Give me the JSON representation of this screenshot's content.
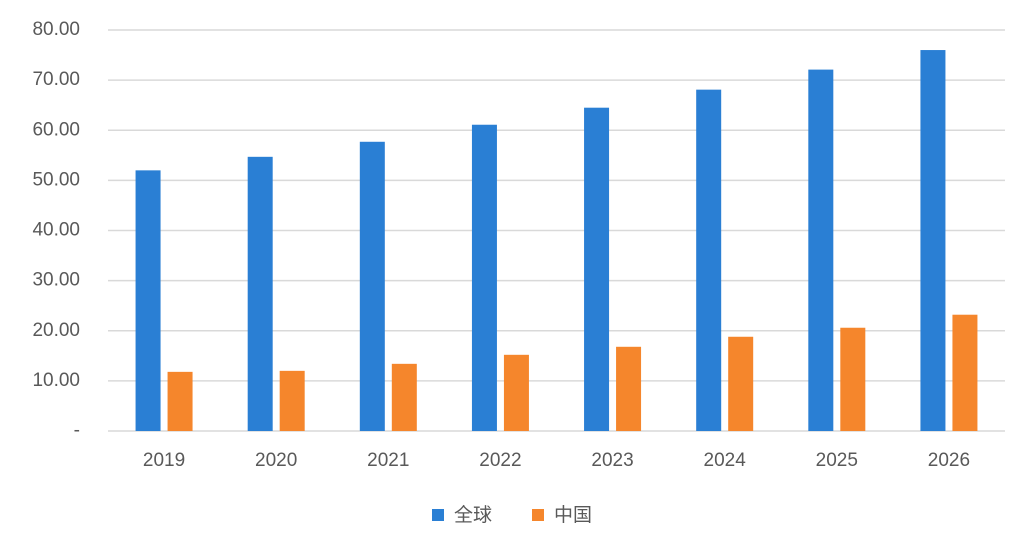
{
  "chart_data": {
    "type": "bar",
    "categories": [
      "2019",
      "2020",
      "2021",
      "2022",
      "2023",
      "2024",
      "2025",
      "2026"
    ],
    "series": [
      {
        "name": "全球",
        "color": "#2a7fd4",
        "values": [
          52.0,
          54.7,
          57.7,
          61.1,
          64.5,
          68.1,
          72.1,
          76.0
        ]
      },
      {
        "name": "中国",
        "color": "#f5862c",
        "values": [
          11.8,
          12.0,
          13.4,
          15.2,
          16.8,
          18.8,
          20.6,
          23.2
        ]
      }
    ],
    "ylim": [
      0,
      80
    ],
    "yticks": [
      {
        "value": 0,
        "label": "-"
      },
      {
        "value": 10,
        "label": "10.00"
      },
      {
        "value": 20,
        "label": "20.00"
      },
      {
        "value": 30,
        "label": "30.00"
      },
      {
        "value": 40,
        "label": "40.00"
      },
      {
        "value": 50,
        "label": "50.00"
      },
      {
        "value": 60,
        "label": "60.00"
      },
      {
        "value": 70,
        "label": "70.00"
      },
      {
        "value": 80,
        "label": "80.00"
      }
    ],
    "grid": true,
    "legend": "bottom"
  }
}
